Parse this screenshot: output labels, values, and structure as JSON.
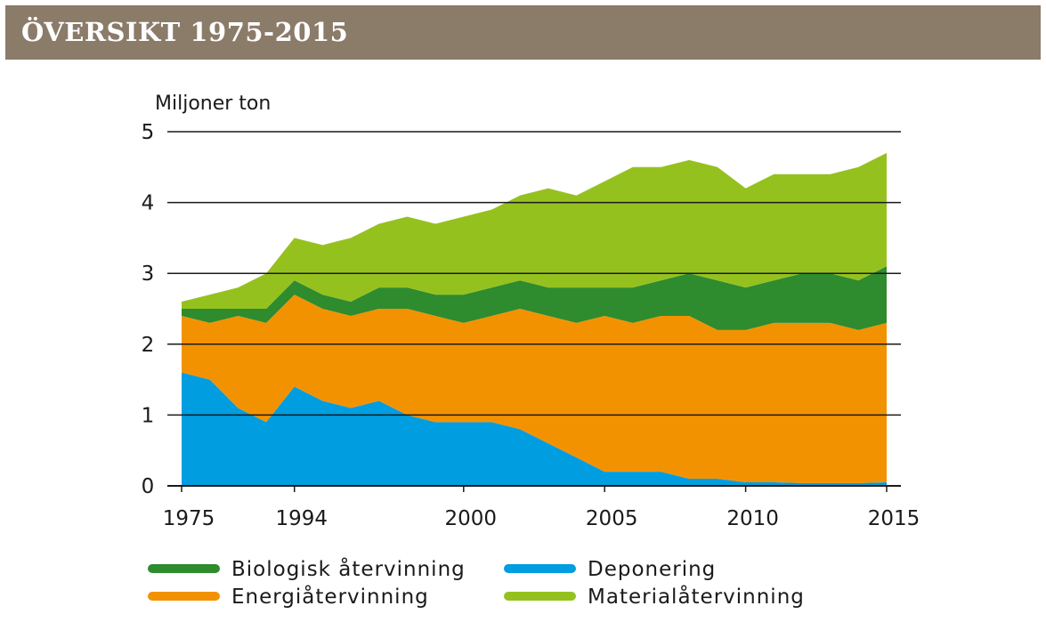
{
  "header": {
    "title": "ÖVERSIKT 1975-2015"
  },
  "chart_data": {
    "type": "area",
    "stacked": true,
    "ylabel": "Miljoner ton",
    "ylim": [
      0,
      5
    ],
    "yticks": [
      "0",
      "1",
      "2",
      "3",
      "4",
      "5"
    ],
    "xticks": [
      {
        "label": "1975",
        "index": 0
      },
      {
        "label": "1994",
        "index": 4
      },
      {
        "label": "2000",
        "index": 10
      },
      {
        "label": "2005",
        "index": 15
      },
      {
        "label": "2010",
        "index": 20
      },
      {
        "label": "2015",
        "index": 25
      }
    ],
    "x": [
      "1975",
      "1990",
      "1992",
      "1993",
      "1994",
      "1995",
      "1996",
      "1997",
      "1998",
      "1999",
      "2000",
      "2001",
      "2002",
      "2003",
      "2004",
      "2005",
      "2006",
      "2007",
      "2008",
      "2009",
      "2010",
      "2011",
      "2012",
      "2013",
      "2014",
      "2015"
    ],
    "series": [
      {
        "name": "Deponering",
        "color": "#009de0",
        "values": [
          1.6,
          1.5,
          1.1,
          0.9,
          1.4,
          1.2,
          1.1,
          1.2,
          1.0,
          0.9,
          0.9,
          0.9,
          0.8,
          0.6,
          0.4,
          0.2,
          0.2,
          0.2,
          0.1,
          0.1,
          0.05,
          0.05,
          0.04,
          0.04,
          0.04,
          0.05
        ]
      },
      {
        "name": "Energiåtervinning",
        "color": "#f39200",
        "values": [
          0.8,
          0.8,
          1.3,
          1.4,
          1.3,
          1.3,
          1.3,
          1.3,
          1.5,
          1.5,
          1.4,
          1.5,
          1.7,
          1.8,
          1.9,
          2.2,
          2.1,
          2.2,
          2.3,
          2.1,
          2.15,
          2.25,
          2.26,
          2.26,
          2.16,
          2.25
        ]
      },
      {
        "name": "Biologisk återvinning",
        "color": "#2e8b2e",
        "values": [
          0.1,
          0.2,
          0.1,
          0.2,
          0.2,
          0.2,
          0.2,
          0.3,
          0.3,
          0.3,
          0.4,
          0.4,
          0.4,
          0.4,
          0.5,
          0.4,
          0.5,
          0.5,
          0.6,
          0.7,
          0.6,
          0.6,
          0.7,
          0.7,
          0.7,
          0.8
        ]
      },
      {
        "name": "Materialåtervinning",
        "color": "#95c11f",
        "values": [
          0.1,
          0.2,
          0.3,
          0.5,
          0.6,
          0.7,
          0.9,
          0.9,
          1.0,
          1.0,
          1.1,
          1.1,
          1.2,
          1.4,
          1.3,
          1.5,
          1.7,
          1.6,
          1.6,
          1.6,
          1.4,
          1.5,
          1.4,
          1.4,
          1.6,
          1.6
        ]
      }
    ],
    "legend": [
      {
        "label": "Biologisk återvinning",
        "color": "#2e8b2e"
      },
      {
        "label": "Deponering",
        "color": "#009de0"
      },
      {
        "label": "Energiåtervinning",
        "color": "#f39200"
      },
      {
        "label": "Materialåtervinning",
        "color": "#95c11f"
      }
    ]
  }
}
